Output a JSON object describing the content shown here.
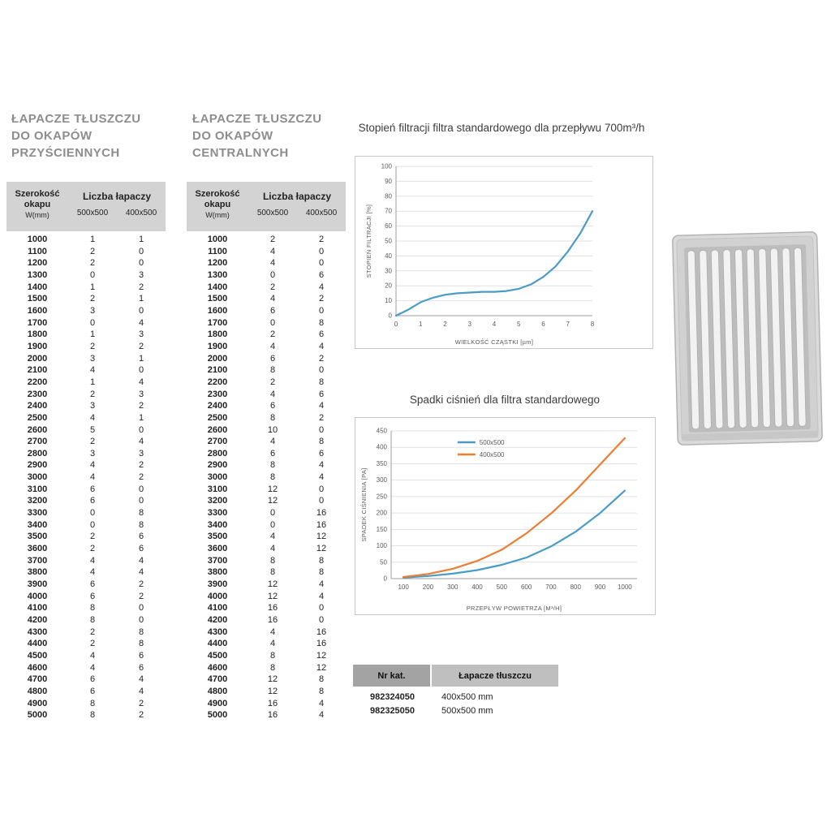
{
  "left_table": {
    "title_lines": [
      "ŁAPACZE TŁUSZCZU",
      "DO OKAPÓW",
      "PRZYŚCIENNYCH"
    ],
    "header": {
      "width_label_1": "Szerokość",
      "width_label_2": "okapu",
      "width_label_3": "W(mm)",
      "group_label": "Liczba łapaczy",
      "col_500": "500x500",
      "col_400": "400x500"
    },
    "rows": [
      [
        1000,
        1,
        1
      ],
      [
        1100,
        2,
        0
      ],
      [
        1200,
        2,
        0
      ],
      [
        1300,
        0,
        3
      ],
      [
        1400,
        1,
        2
      ],
      [
        1500,
        2,
        1
      ],
      [
        1600,
        3,
        0
      ],
      [
        1700,
        0,
        4
      ],
      [
        1800,
        1,
        3
      ],
      [
        1900,
        2,
        2
      ],
      [
        2000,
        3,
        1
      ],
      [
        2100,
        4,
        0
      ],
      [
        2200,
        1,
        4
      ],
      [
        2300,
        2,
        3
      ],
      [
        2400,
        3,
        2
      ],
      [
        2500,
        4,
        1
      ],
      [
        2600,
        5,
        0
      ],
      [
        2700,
        2,
        4
      ],
      [
        2800,
        3,
        3
      ],
      [
        2900,
        4,
        2
      ],
      [
        3000,
        4,
        2
      ],
      [
        3100,
        6,
        0
      ],
      [
        3200,
        6,
        0
      ],
      [
        3300,
        0,
        8
      ],
      [
        3400,
        0,
        8
      ],
      [
        3500,
        2,
        6
      ],
      [
        3600,
        2,
        6
      ],
      [
        3700,
        4,
        4
      ],
      [
        3800,
        4,
        4
      ],
      [
        3900,
        6,
        2
      ],
      [
        4000,
        6,
        2
      ],
      [
        4100,
        8,
        0
      ],
      [
        4200,
        8,
        0
      ],
      [
        4300,
        2,
        8
      ],
      [
        4400,
        2,
        8
      ],
      [
        4500,
        4,
        6
      ],
      [
        4600,
        4,
        6
      ],
      [
        4700,
        6,
        4
      ],
      [
        4800,
        6,
        4
      ],
      [
        4900,
        8,
        2
      ],
      [
        5000,
        8,
        2
      ]
    ]
  },
  "center_table": {
    "title_lines": [
      "ŁAPACZE TŁUSZCZU",
      "DO OKAPÓW",
      "CENTRALNYCH"
    ],
    "header": {
      "width_label_1": "Szerokość",
      "width_label_2": "okapu",
      "width_label_3": "W(mm)",
      "group_label": "Liczba łapaczy",
      "col_500": "500x500",
      "col_400": "400x500"
    },
    "rows": [
      [
        1000,
        2,
        2
      ],
      [
        1100,
        4,
        0
      ],
      [
        1200,
        4,
        0
      ],
      [
        1300,
        0,
        6
      ],
      [
        1400,
        2,
        4
      ],
      [
        1500,
        4,
        2
      ],
      [
        1600,
        6,
        0
      ],
      [
        1700,
        0,
        8
      ],
      [
        1800,
        2,
        6
      ],
      [
        1900,
        4,
        4
      ],
      [
        2000,
        6,
        2
      ],
      [
        2100,
        8,
        0
      ],
      [
        2200,
        2,
        8
      ],
      [
        2300,
        4,
        6
      ],
      [
        2400,
        6,
        4
      ],
      [
        2500,
        8,
        2
      ],
      [
        2600,
        10,
        0
      ],
      [
        2700,
        4,
        8
      ],
      [
        2800,
        6,
        6
      ],
      [
        2900,
        8,
        4
      ],
      [
        3000,
        8,
        4
      ],
      [
        3100,
        12,
        0
      ],
      [
        3200,
        12,
        0
      ],
      [
        3300,
        0,
        16
      ],
      [
        3400,
        0,
        16
      ],
      [
        3500,
        4,
        12
      ],
      [
        3600,
        4,
        12
      ],
      [
        3700,
        8,
        8
      ],
      [
        3800,
        8,
        8
      ],
      [
        3900,
        12,
        4
      ],
      [
        4000,
        12,
        4
      ],
      [
        4100,
        16,
        0
      ],
      [
        4200,
        16,
        0
      ],
      [
        4300,
        4,
        16
      ],
      [
        4400,
        4,
        16
      ],
      [
        4500,
        8,
        12
      ],
      [
        4600,
        8,
        12
      ],
      [
        4700,
        12,
        8
      ],
      [
        4800,
        12,
        8
      ],
      [
        4900,
        16,
        4
      ],
      [
        5000,
        16,
        4
      ]
    ]
  },
  "chart_data": [
    {
      "type": "line",
      "title": "Stopień filtracji filtra standardowego dla przepływu 700m³/h",
      "xlabel": "WIELKOŚĆ CZĄSTKI [µm]",
      "ylabel": "STOPIEŃ FILTRACJI [%]",
      "xlim": [
        0,
        8
      ],
      "ylim": [
        0,
        100
      ],
      "xticks": [
        0,
        1,
        2,
        3,
        4,
        5,
        6,
        7,
        8
      ],
      "yticks": [
        0,
        10,
        20,
        30,
        40,
        50,
        60,
        70,
        80,
        90,
        100
      ],
      "grid": "horizontal",
      "legend_position": "none",
      "series": [
        {
          "name": "filtr standardowy",
          "color": "#4a9cc7",
          "x": [
            0,
            0.5,
            1,
            1.5,
            2,
            2.5,
            3,
            3.5,
            4,
            4.5,
            5,
            5.5,
            6,
            6.5,
            7,
            7.5,
            8
          ],
          "y": [
            0,
            4,
            9,
            12,
            14,
            15,
            15.5,
            16,
            16,
            16.5,
            18,
            21,
            26,
            33,
            43,
            55,
            70
          ]
        }
      ]
    },
    {
      "type": "line",
      "title": "Spadki ciśnień dla filtra standardowego",
      "xlabel": "PRZEPŁYW POWIETRZA [M³/H]",
      "ylabel": "SPADEK CIŚNIENIA [PA]",
      "xlim": [
        50,
        1050
      ],
      "ylim": [
        0,
        450
      ],
      "xticks": [
        100,
        200,
        300,
        400,
        500,
        600,
        700,
        800,
        900,
        1000
      ],
      "yticks": [
        0,
        50,
        100,
        150,
        200,
        250,
        300,
        350,
        400,
        450
      ],
      "grid": "horizontal",
      "legend_position": "top-center",
      "series": [
        {
          "name": "500x500",
          "color": "#4a9cc7",
          "x": [
            100,
            200,
            300,
            400,
            500,
            600,
            700,
            800,
            900,
            1000
          ],
          "y": [
            3,
            8,
            15,
            26,
            42,
            64,
            98,
            143,
            200,
            268
          ]
        },
        {
          "name": "400x500",
          "color": "#ed7d31",
          "x": [
            100,
            200,
            300,
            400,
            500,
            600,
            700,
            800,
            900,
            1000
          ],
          "y": [
            5,
            14,
            30,
            54,
            88,
            138,
            198,
            268,
            348,
            428
          ]
        }
      ]
    }
  ],
  "catalog_table": {
    "headers": [
      "Nr kat.",
      "Łapacze tłuszczu"
    ],
    "rows": [
      [
        "982324050",
        "400x500 mm"
      ],
      [
        "982325050",
        "500x500 mm"
      ]
    ]
  },
  "colors": {
    "accent_blue": "#4a9cc7",
    "accent_orange": "#ed7d31",
    "section_title_gray": "#8d8d8d",
    "table_header_bg": "#d3d3d3",
    "catalog_header_dark": "#a3a3a3",
    "catalog_header_light": "#bfbfbf"
  }
}
